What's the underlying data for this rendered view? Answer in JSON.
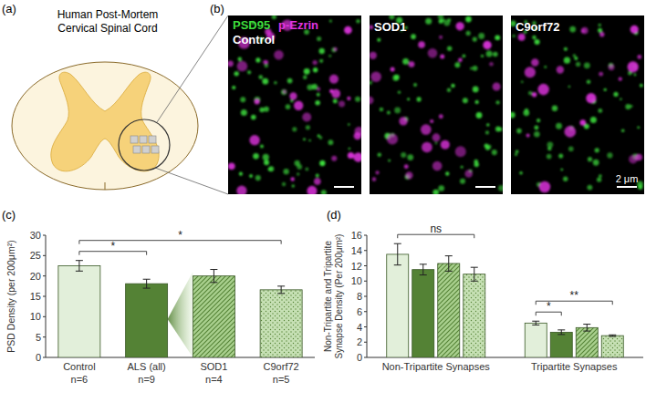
{
  "panels": {
    "a": {
      "label": "(a)",
      "title": [
        "Human Post-Mortem",
        "Cervical Spinal Cord"
      ]
    },
    "b": {
      "label": "(b)",
      "channels": [
        {
          "name": "PSD95",
          "color": "#3ddc3d"
        },
        {
          "name": "p-Ezrin",
          "color": "#e034e0"
        }
      ],
      "images": [
        "Control",
        "SOD1",
        "C9orf72"
      ],
      "scale_bar": "2 μm"
    }
  },
  "chart_data": [
    {
      "panel_label": "(c)",
      "type": "bar",
      "y_label": "PSD Density (per 200μm²)",
      "categories": [
        "Control",
        "ALS (all)",
        "SOD1",
        "C9orf72"
      ],
      "n_labels": [
        "n=6",
        "n=9",
        "n=4",
        "n=5"
      ],
      "values": [
        22.5,
        18.1,
        20.0,
        16.6
      ],
      "errors": [
        1.3,
        1.1,
        1.6,
        0.9
      ],
      "colors": [
        "#e2efda",
        "#548235",
        "#a9d08e",
        "#c6e0b4"
      ],
      "ylim": [
        0,
        30
      ],
      "yticks": [
        0,
        5,
        10,
        15,
        20,
        25,
        30
      ],
      "annotations": [
        {
          "text": "*",
          "from": 0,
          "to": 1
        },
        {
          "text": "*",
          "from": 0,
          "to": 3
        }
      ]
    },
    {
      "panel_label": "(d)",
      "type": "bar",
      "y_label": [
        "Non-Tripartite and Tripartite",
        "Synapse Density (Per 200μm²)"
      ],
      "categories": [
        "Non-Tripartite Synapses",
        "Tripartite Synapses"
      ],
      "series": [
        {
          "color": "#e2efda",
          "values": [
            13.5,
            4.5
          ],
          "errors": [
            1.4,
            0.25
          ]
        },
        {
          "color": "#548235",
          "values": [
            11.5,
            3.3
          ],
          "errors": [
            0.7,
            0.3
          ]
        },
        {
          "color": "#a9d08e",
          "values": [
            12.3,
            3.9
          ],
          "errors": [
            1.0,
            0.45
          ]
        },
        {
          "color": "#c6e0b4",
          "values": [
            10.9,
            2.85
          ],
          "errors": [
            0.9,
            0.1
          ]
        }
      ],
      "ylim": [
        0,
        16
      ],
      "yticks": [
        0,
        2,
        4,
        6,
        8,
        10,
        12,
        14,
        16
      ],
      "annotations": [
        {
          "text": "ns",
          "category": 0,
          "from": 0,
          "to": 3
        },
        {
          "text": "*",
          "category": 1,
          "from": 0,
          "to": 1
        },
        {
          "text": "**",
          "category": 1,
          "from": 0,
          "to": 3
        }
      ]
    }
  ]
}
